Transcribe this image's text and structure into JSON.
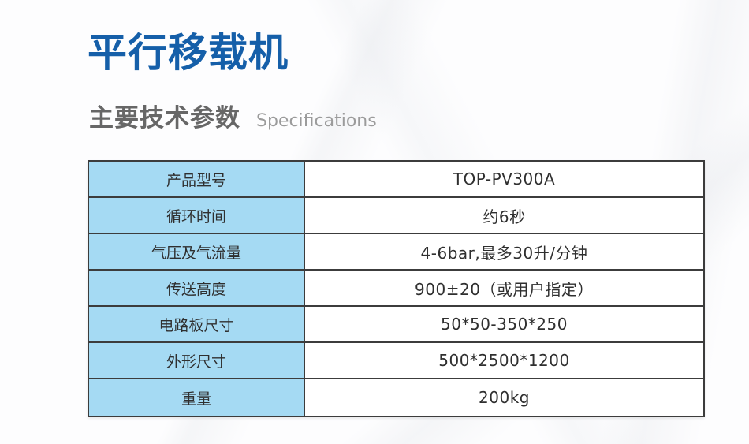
{
  "header": {
    "title": "平行移载机",
    "section_title": "主要技术参数",
    "section_subtitle_en": "Specifications"
  },
  "colors": {
    "title_blue": "#155fa9",
    "section_title_gray": "#676767",
    "section_subtitle_gray": "#9b9b9b",
    "table_label_bg": "#a5daf3",
    "table_border": "#3c3c3c",
    "table_text": "#2f2f2f",
    "page_background": "#fdfdfe"
  },
  "spec_table": {
    "rows": [
      {
        "label": "产品型号",
        "value": "TOP-PV300A"
      },
      {
        "label": "循环时间",
        "value": "约6秒"
      },
      {
        "label": "气压及气流量",
        "value": "4-6bar,最多30升/分钟"
      },
      {
        "label": "传送高度",
        "value": "900±20（或用户指定）"
      },
      {
        "label": "电路板尺寸",
        "value": "50*50-350*250"
      },
      {
        "label": "外形尺寸",
        "value": "500*2500*1200"
      },
      {
        "label": "重量",
        "value": "200kg"
      }
    ]
  }
}
